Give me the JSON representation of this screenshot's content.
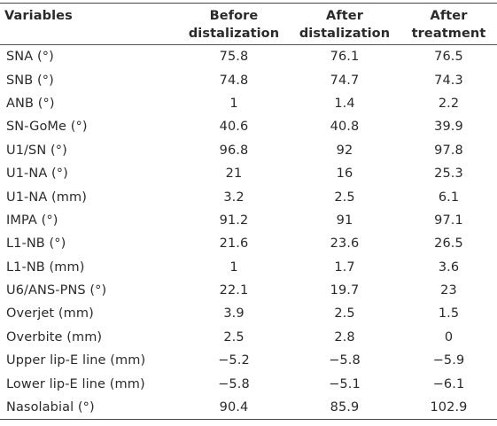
{
  "table": {
    "headers": [
      {
        "line1": "Variables",
        "line2": ""
      },
      {
        "line1": "Before",
        "line2": "distalization"
      },
      {
        "line1": "After",
        "line2": "distalization"
      },
      {
        "line1": "After",
        "line2": "treatment"
      }
    ],
    "rows": [
      {
        "variable": "SNA (°)",
        "before": "75.8",
        "after_dist": "76.1",
        "after_treat": "76.5"
      },
      {
        "variable": "SNB (°)",
        "before": "74.8",
        "after_dist": "74.7",
        "after_treat": "74.3"
      },
      {
        "variable": "ANB (°)",
        "before": "1",
        "after_dist": "1.4",
        "after_treat": "2.2"
      },
      {
        "variable": "SN-GoMe (°)",
        "before": "40.6",
        "after_dist": "40.8",
        "after_treat": "39.9"
      },
      {
        "variable": "U1/SN (°)",
        "before": "96.8",
        "after_dist": "92",
        "after_treat": "97.8"
      },
      {
        "variable": "U1-NA (°)",
        "before": "21",
        "after_dist": "16",
        "after_treat": "25.3"
      },
      {
        "variable": "U1-NA (mm)",
        "before": "3.2",
        "after_dist": "2.5",
        "after_treat": "6.1"
      },
      {
        "variable": "IMPA (°)",
        "before": "91.2",
        "after_dist": "91",
        "after_treat": "97.1"
      },
      {
        "variable": "L1-NB (°)",
        "before": "21.6",
        "after_dist": "23.6",
        "after_treat": "26.5"
      },
      {
        "variable": "L1-NB (mm)",
        "before": "1",
        "after_dist": "1.7",
        "after_treat": "3.6"
      },
      {
        "variable": "U6/ANS-PNS (°)",
        "before": "22.1",
        "after_dist": "19.7",
        "after_treat": "23"
      },
      {
        "variable": "Overjet (mm)",
        "before": "3.9",
        "after_dist": "2.5",
        "after_treat": "1.5"
      },
      {
        "variable": "Overbite (mm)",
        "before": "2.5",
        "after_dist": "2.8",
        "after_treat": "0"
      },
      {
        "variable": "Upper lip-E line (mm)",
        "before": "−5.2",
        "after_dist": "−5.8",
        "after_treat": "−5.9"
      },
      {
        "variable": "Lower lip-E line (mm)",
        "before": "−5.8",
        "after_dist": "−5.1",
        "after_treat": "−6.1"
      },
      {
        "variable": "Nasolabial (°)",
        "before": "90.4",
        "after_dist": "85.9",
        "after_treat": "102.9"
      }
    ]
  }
}
